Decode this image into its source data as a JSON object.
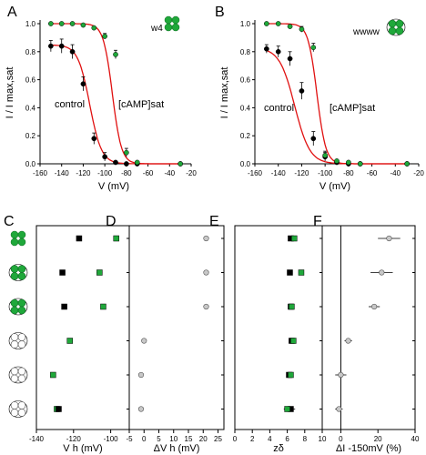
{
  "figure": {
    "colors": {
      "control": "#000000",
      "camp": "#1fa83a",
      "fit": "#e01010",
      "hollow": "#c8c8c8",
      "axis": "#000000"
    }
  },
  "chart_data": [
    {
      "panel": "A",
      "type": "scatter",
      "title": "",
      "construct": "w4",
      "xlabel": "V (mV)",
      "ylabel": "I / I max,sat",
      "xlim": [
        -160,
        -20
      ],
      "ylim": [
        0,
        1.0
      ],
      "xticks": [
        "-160",
        "-140",
        "-120",
        "-100",
        "-80",
        "-60",
        "-40",
        "-20"
      ],
      "yticks": [
        "0.0",
        "0.2",
        "0.4",
        "0.6",
        "0.8",
        "1.0"
      ],
      "series_labels": [
        "control",
        "[cAMP]sat"
      ],
      "series": [
        {
          "name": "control",
          "x": [
            -150,
            -140,
            -130,
            -120,
            -110,
            -100,
            -90,
            -80,
            -70,
            -30
          ],
          "y": [
            0.84,
            0.84,
            0.8,
            0.57,
            0.18,
            0.05,
            0.01,
            0.0,
            0.0,
            0.0
          ],
          "err": [
            0.04,
            0.05,
            0.05,
            0.05,
            0.04,
            0.03,
            0,
            0,
            0,
            0
          ],
          "fit": {
            "vh": -114,
            "k": 5.5
          }
        },
        {
          "name": "[cAMP]sat",
          "x": [
            -150,
            -140,
            -130,
            -120,
            -110,
            -100,
            -90,
            -80,
            -70,
            -30
          ],
          "y": [
            1.0,
            1.0,
            1.0,
            0.99,
            0.97,
            0.91,
            0.78,
            0.08,
            0.01,
            0.0
          ],
          "err": [
            0,
            0,
            0,
            0,
            0,
            0.02,
            0.03,
            0.03,
            0,
            0
          ],
          "fit": {
            "vh": -93,
            "k": 4.2
          }
        }
      ]
    },
    {
      "panel": "B",
      "type": "scatter",
      "title": "",
      "construct": "wwww",
      "xlabel": "V (mV)",
      "ylabel": "I / I max,sat",
      "xlim": [
        -160,
        -20
      ],
      "ylim": [
        0,
        1.0
      ],
      "xticks": [
        "-160",
        "-140",
        "-120",
        "-100",
        "-80",
        "-60",
        "-40",
        "-20"
      ],
      "yticks": [
        "0.0",
        "0.2",
        "0.4",
        "0.6",
        "0.8",
        "1.0"
      ],
      "series_labels": [
        "control",
        "[cAMP]sat"
      ],
      "series": [
        {
          "name": "control",
          "x": [
            -150,
            -140,
            -130,
            -120,
            -110,
            -100,
            -90,
            -80,
            -70,
            -30
          ],
          "y": [
            0.82,
            0.8,
            0.75,
            0.52,
            0.18,
            0.05,
            0.01,
            0.0,
            0.0,
            0.0
          ],
          "err": [
            0.03,
            0.04,
            0.05,
            0.06,
            0.05,
            0.03,
            0,
            0,
            0,
            0
          ],
          "fit": {
            "vh": -126,
            "k": 6.5
          }
        },
        {
          "name": "[cAMP]sat",
          "x": [
            -150,
            -140,
            -130,
            -120,
            -110,
            -100,
            -90,
            -80,
            -70,
            -30
          ],
          "y": [
            1.0,
            1.0,
            0.98,
            0.96,
            0.83,
            0.06,
            0.02,
            0.01,
            0.0,
            0.0
          ],
          "err": [
            0,
            0,
            0,
            0.02,
            0.03,
            0.03,
            0,
            0,
            0,
            0
          ],
          "fit": {
            "vh": -107,
            "k": 3.8
          }
        }
      ]
    },
    {
      "panel": "C",
      "type": "scatter",
      "title": "",
      "xlabel": "V h (mV)",
      "xlim": [
        -140,
        -90
      ],
      "xticks": [
        "-140",
        "-120",
        "-100"
      ],
      "rows": 6,
      "points": [
        {
          "row": 0,
          "x": -117,
          "series": "control",
          "err": 0.8
        },
        {
          "row": 0,
          "x": -97,
          "series": "camp",
          "err": 0.8
        },
        {
          "row": 1,
          "x": -126,
          "series": "control",
          "err": 1.0
        },
        {
          "row": 1,
          "x": -106,
          "series": "camp",
          "err": 1.5
        },
        {
          "row": 2,
          "x": -125,
          "series": "control",
          "err": 1.5
        },
        {
          "row": 2,
          "x": -104,
          "series": "camp",
          "err": 1.5
        },
        {
          "row": 3,
          "x": -122,
          "series": "camp",
          "err": 0.8
        },
        {
          "row": 4,
          "x": -131,
          "series": "camp",
          "err": 0.8
        },
        {
          "row": 5,
          "x": -129,
          "series": "camp",
          "err": 0.8
        },
        {
          "row": 5,
          "x": -128,
          "series": "control",
          "err": 1.0
        }
      ]
    },
    {
      "panel": "D",
      "type": "scatter",
      "title": "",
      "xlabel": "ΔV h (mV)",
      "xlim": [
        -5,
        27
      ],
      "xticks": [
        "-5",
        "0",
        "5",
        "10",
        "15",
        "20",
        "25"
      ],
      "rows": 6,
      "points": [
        {
          "row": 0,
          "x": 21,
          "series": "hollow",
          "err": 0.8
        },
        {
          "row": 1,
          "x": 21,
          "series": "hollow",
          "err": 0.8
        },
        {
          "row": 2,
          "x": 21,
          "series": "hollow",
          "err": 0.8
        },
        {
          "row": 3,
          "x": 0,
          "series": "hollow",
          "err": 0.5
        },
        {
          "row": 4,
          "x": -1,
          "series": "hollow",
          "err": 0.5
        },
        {
          "row": 5,
          "x": -1,
          "series": "hollow",
          "err": 0.5
        }
      ]
    },
    {
      "panel": "E",
      "type": "scatter",
      "title": "",
      "xlabel": "zδ",
      "xlim": [
        0,
        10
      ],
      "xticks": [
        "0",
        "2",
        "4",
        "6",
        "8",
        "10"
      ],
      "rows": 6,
      "points": [
        {
          "row": 0,
          "x": 6.4,
          "series": "control",
          "err": 0.3
        },
        {
          "row": 0,
          "x": 6.8,
          "series": "camp",
          "err": 0.3
        },
        {
          "row": 1,
          "x": 6.3,
          "series": "control",
          "err": 0.3
        },
        {
          "row": 1,
          "x": 7.6,
          "series": "camp",
          "err": 0.3
        },
        {
          "row": 2,
          "x": 6.4,
          "series": "control",
          "err": 0.3
        },
        {
          "row": 2,
          "x": 6.5,
          "series": "camp",
          "err": 0.3
        },
        {
          "row": 3,
          "x": 6.5,
          "series": "control",
          "err": 0.3
        },
        {
          "row": 3,
          "x": 6.7,
          "series": "camp",
          "err": 0.3
        },
        {
          "row": 4,
          "x": 6.2,
          "series": "control",
          "err": 0.3
        },
        {
          "row": 4,
          "x": 6.4,
          "series": "camp",
          "err": 0.3
        },
        {
          "row": 5,
          "x": 6.4,
          "series": "control",
          "err": 0.5
        },
        {
          "row": 5,
          "x": 6.0,
          "series": "camp",
          "err": 0.4
        }
      ]
    },
    {
      "panel": "F",
      "type": "scatter",
      "title": "",
      "xlabel": "ΔI -150mV (%)",
      "xlim": [
        -10,
        40
      ],
      "xticks": [
        "0",
        "20",
        "40"
      ],
      "zero_line": true,
      "rows": 6,
      "points": [
        {
          "row": 0,
          "x": 26,
          "series": "hollow",
          "err": 6
        },
        {
          "row": 1,
          "x": 22,
          "series": "hollow",
          "err": 6
        },
        {
          "row": 2,
          "x": 18,
          "series": "hollow",
          "err": 3
        },
        {
          "row": 3,
          "x": 4,
          "series": "hollow",
          "err": 2
        },
        {
          "row": 4,
          "x": 0,
          "series": "hollow",
          "err": 3
        },
        {
          "row": 5,
          "x": -1,
          "series": "hollow",
          "err": 2
        }
      ]
    }
  ]
}
